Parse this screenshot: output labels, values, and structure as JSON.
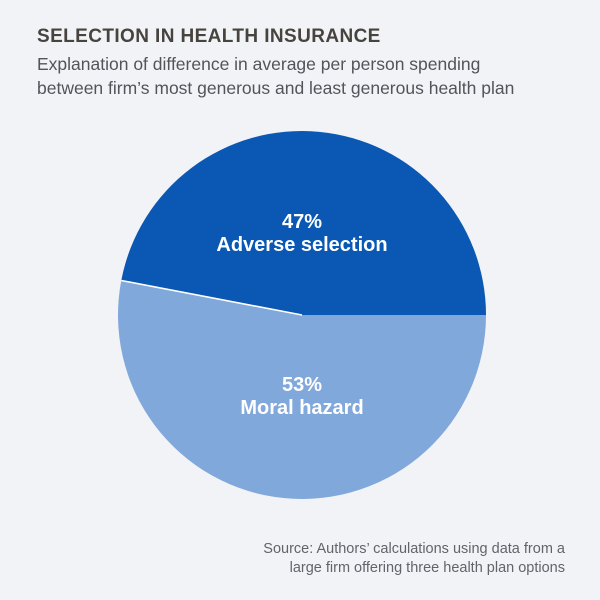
{
  "header": {
    "title": "SELECTION IN HEALTH INSURANCE",
    "subtitle_line1": "Explanation of difference in average per person spending",
    "subtitle_line2": "between firm’s most generous and least generous health plan"
  },
  "chart_data": {
    "type": "pie",
    "title": "Explanation of difference in average per person spending between firm’s most generous and least generous health plan",
    "units": "percent",
    "total": 100,
    "start_angle_deg": 0,
    "direction": "counterclockwise",
    "labels_inside": true,
    "slices": [
      {
        "label": "Adverse selection",
        "value": 47,
        "pct_label": "47%",
        "color": "#0a58b3"
      },
      {
        "label": "Moral hazard",
        "value": 53,
        "pct_label": "53%",
        "color": "#80a8da"
      }
    ]
  },
  "source": {
    "line1": "Source: Authors’ calculations using data from a",
    "line2": "large firm offering three health plan options"
  },
  "colors": {
    "background": "#f1f3f6",
    "title_text": "#474440",
    "subtitle_text": "#53545a",
    "source_text": "#63646a",
    "slice_label_text": "#ffffff",
    "divider": "#ffffff"
  }
}
